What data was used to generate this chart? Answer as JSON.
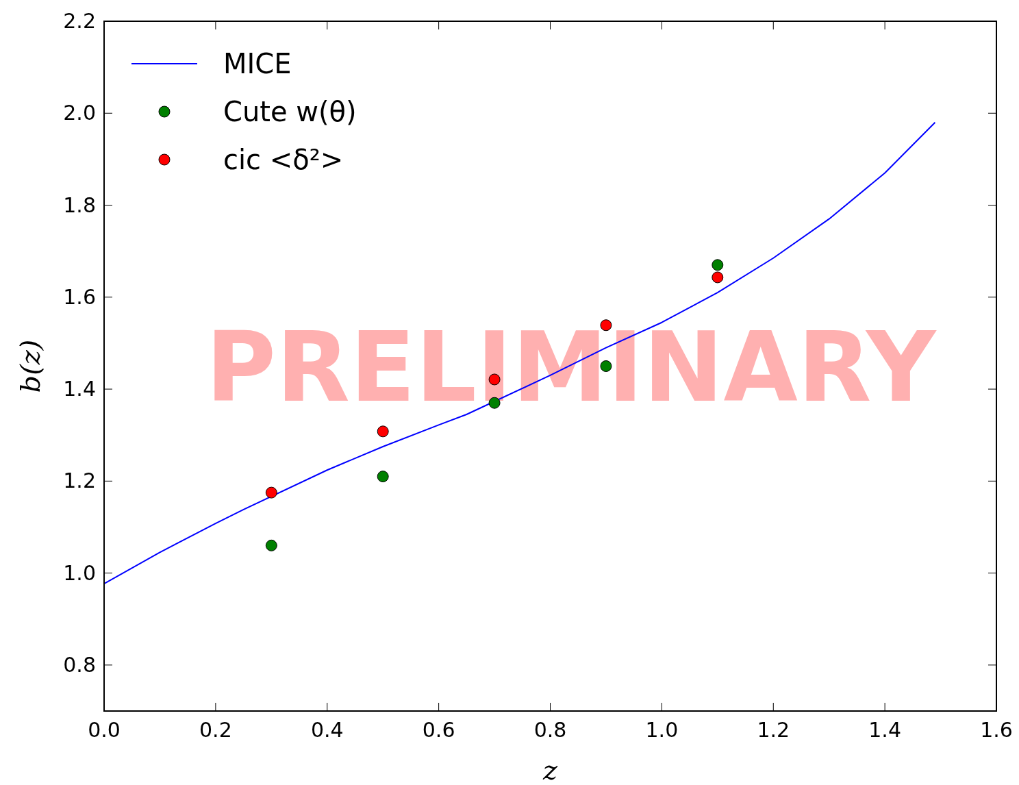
{
  "chart_data": {
    "type": "line",
    "xlabel": "z",
    "ylabel": "b(z)",
    "xlim": [
      0,
      1.6
    ],
    "ylim": [
      0.7,
      2.2
    ],
    "xticks": [
      {
        "value": 0,
        "label": "0.0"
      },
      {
        "value": 0.2,
        "label": "0.2"
      },
      {
        "value": 0.4,
        "label": "0.4"
      },
      {
        "value": 0.6,
        "label": "0.6"
      },
      {
        "value": 0.8,
        "label": "0.8"
      },
      {
        "value": 1,
        "label": "1.0"
      },
      {
        "value": 1.2,
        "label": "1.2"
      },
      {
        "value": 1.4,
        "label": "1.4"
      },
      {
        "value": 1.6,
        "label": "1.6"
      }
    ],
    "yticks": [
      {
        "value": 0.8,
        "label": "0.8"
      },
      {
        "value": 1,
        "label": "1.0"
      },
      {
        "value": 1.2,
        "label": "1.2"
      },
      {
        "value": 1.4,
        "label": "1.4"
      },
      {
        "value": 1.6,
        "label": "1.6"
      },
      {
        "value": 1.8,
        "label": "1.8"
      },
      {
        "value": 2,
        "label": "2.0"
      },
      {
        "value": 2.2,
        "label": "2.2"
      }
    ],
    "grid": false,
    "legend": "top left",
    "series": [
      {
        "name": "MICE",
        "color": "#0000ff",
        "marker": "none",
        "x": [
          0,
          0.1,
          0.2,
          0.25,
          0.4,
          0.5,
          0.6,
          0.65,
          0.8,
          0.9,
          1.0,
          1.1,
          1.2,
          1.3,
          1.4,
          1.49
        ],
        "values": [
          0.977,
          1.045,
          1.108,
          1.138,
          1.224,
          1.275,
          1.322,
          1.345,
          1.43,
          1.49,
          1.545,
          1.61,
          1.685,
          1.77,
          1.87,
          1.98
        ]
      },
      {
        "name": "Cute w(θ)",
        "type": "scatter",
        "color": "#008000",
        "marker": "circle",
        "x": [
          0.3,
          0.5,
          0.7,
          0.9,
          1.1
        ],
        "values": [
          1.06,
          1.21,
          1.37,
          1.45,
          1.67
        ]
      },
      {
        "name": "cic <δ²>",
        "type": "scatter",
        "color": "#ff0000",
        "marker": "circle",
        "x": [
          0.3,
          0.5,
          0.7,
          0.9,
          1.1
        ],
        "values": [
          1.175,
          1.308,
          1.421,
          1.539,
          1.643
        ]
      }
    ],
    "annotations": [
      "PRELIMINARY"
    ]
  }
}
